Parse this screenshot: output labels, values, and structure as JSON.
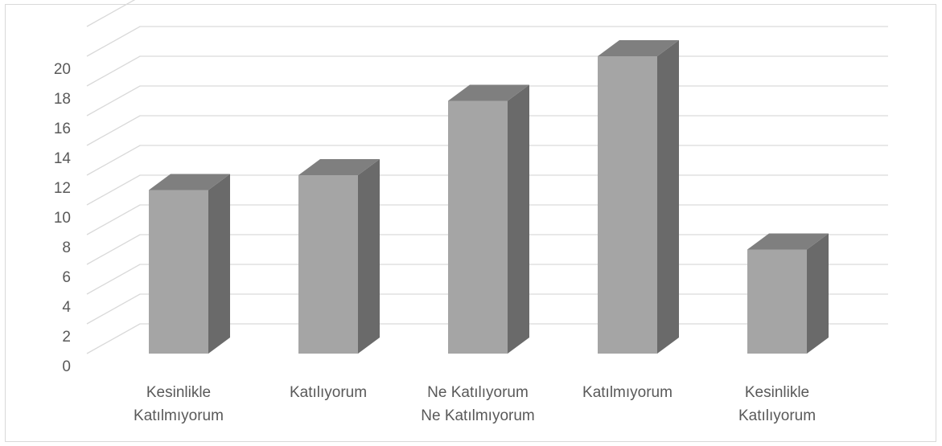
{
  "chart_data": {
    "type": "bar",
    "style": "3d-column",
    "title": "",
    "xlabel": "",
    "ylabel": "",
    "categories": [
      [
        "Kesinlikle",
        "Katılmıyorum"
      ],
      [
        "Katılıyorum"
      ],
      [
        "Ne Katılıyorum",
        "Ne Katılmıyorum"
      ],
      [
        "Katılmıyorum"
      ],
      [
        "Kesinlikle",
        "Katılıyorum"
      ]
    ],
    "values": [
      11,
      12,
      17,
      20,
      7
    ],
    "ylim": [
      0,
      22
    ],
    "yticks": [
      "0",
      "2",
      "4",
      "6",
      "8",
      "10",
      "12",
      "14",
      "16",
      "18",
      "20"
    ],
    "grid": true,
    "legend": "none",
    "colors": {
      "front": "#a5a5a5",
      "top": "#7f7f7f",
      "side": "#6a6a6a",
      "grid": "#d9d9d9",
      "text": "#595959"
    }
  }
}
